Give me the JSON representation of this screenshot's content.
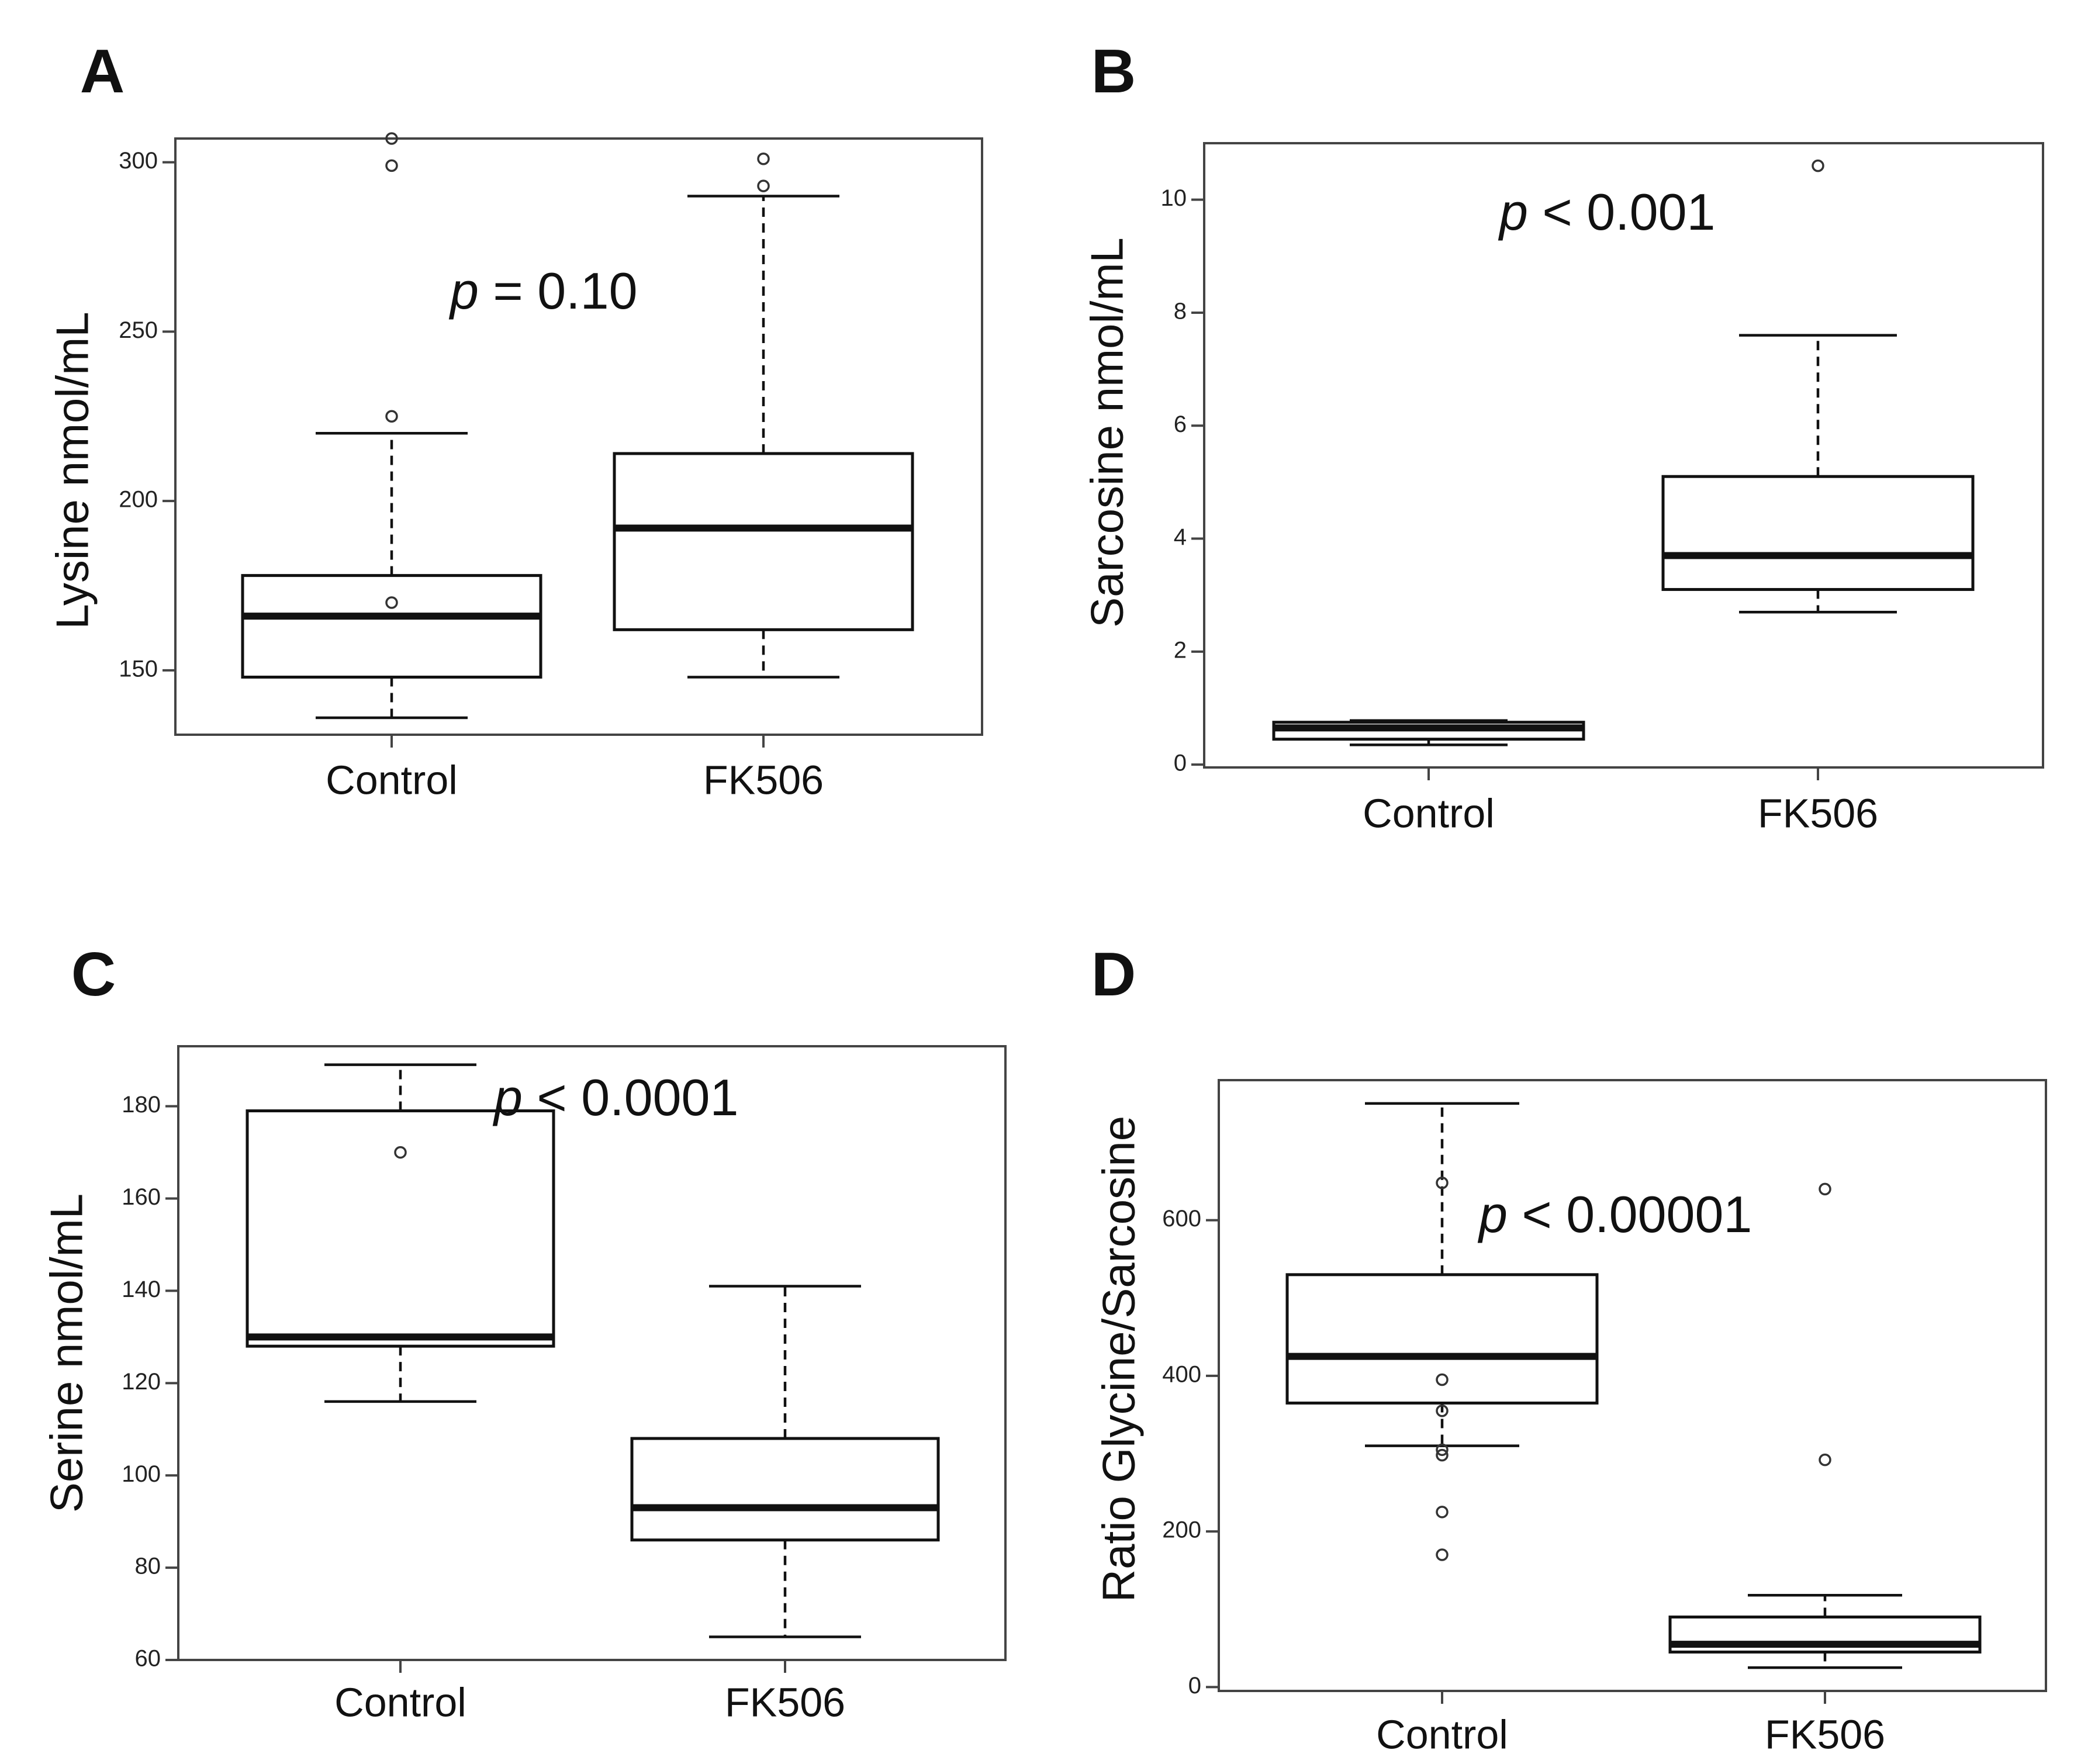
{
  "chart_data": [
    {
      "type": "box",
      "panel": "A",
      "ylabel": "Lysine nmol/mL",
      "annotation": {
        "italic": "p",
        "text": " = 0.10"
      },
      "ylim": [
        131,
        307
      ],
      "yticks": [
        150,
        200,
        250,
        300
      ],
      "categories": [
        "Control",
        "FK506"
      ],
      "boxes": [
        {
          "name": "Control",
          "q1": 148,
          "median": 166,
          "q3": 178,
          "whisker_low": 136,
          "whisker_high": 220,
          "outliers": [
            307,
            299,
            225,
            170
          ]
        },
        {
          "name": "FK506",
          "q1": 162,
          "median": 192,
          "q3": 214,
          "whisker_low": 148,
          "whisker_high": 290,
          "outliers": [
            301,
            293
          ]
        }
      ]
    },
    {
      "type": "box",
      "panel": "B",
      "ylabel": "Sarcosine nmol/mL",
      "annotation": {
        "italic": "p",
        "text": " < 0.001"
      },
      "ylim": [
        -0.05,
        11
      ],
      "yticks": [
        0,
        2,
        4,
        6,
        8,
        10
      ],
      "categories": [
        "Control",
        "FK506"
      ],
      "boxes": [
        {
          "name": "Control",
          "q1": 0.45,
          "median": 0.65,
          "q3": 0.75,
          "whisker_low": 0.35,
          "whisker_high": 0.78,
          "outliers": []
        },
        {
          "name": "FK506",
          "q1": 3.1,
          "median": 3.7,
          "q3": 5.1,
          "whisker_low": 2.7,
          "whisker_high": 7.6,
          "outliers": [
            10.6
          ]
        }
      ]
    },
    {
      "type": "box",
      "panel": "C",
      "ylabel": "Serine nmol/mL",
      "annotation": {
        "italic": "p",
        "text": " < 0.0001"
      },
      "ylim": [
        60,
        193
      ],
      "yticks": [
        60,
        80,
        100,
        120,
        140,
        160,
        180
      ],
      "categories": [
        "Control",
        "FK506"
      ],
      "boxes": [
        {
          "name": "Control",
          "q1": 128,
          "median": 130,
          "q3": 179,
          "whisker_low": 116,
          "whisker_high": 189,
          "outliers": [
            170
          ]
        },
        {
          "name": "FK506",
          "q1": 86,
          "median": 93,
          "q3": 108,
          "whisker_low": 65,
          "whisker_high": 141,
          "outliers": []
        }
      ]
    },
    {
      "type": "box",
      "panel": "D",
      "ylabel": "Ratio Glycine/Sarcosine",
      "annotation": {
        "italic": "p",
        "text": " < 0.00001"
      },
      "ylim": [
        -5,
        780
      ],
      "yticks": [
        0,
        200,
        400,
        600
      ],
      "categories": [
        "Control",
        "FK506"
      ],
      "boxes": [
        {
          "name": "Control",
          "q1": 365,
          "median": 425,
          "q3": 530,
          "whisker_low": 310,
          "whisker_high": 750,
          "outliers": [
            648,
            395,
            355,
            305,
            298,
            225,
            170
          ]
        },
        {
          "name": "FK506",
          "q1": 45,
          "median": 55,
          "q3": 90,
          "whisker_low": 25,
          "whisker_high": 118,
          "outliers": [
            640,
            292
          ]
        }
      ]
    }
  ]
}
